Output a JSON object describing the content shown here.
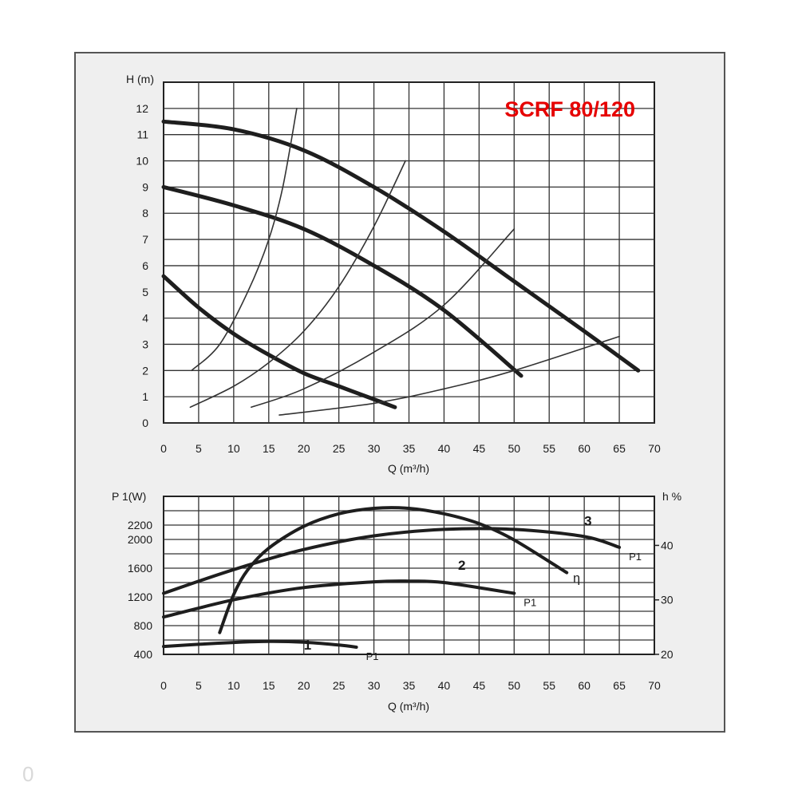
{
  "page": {
    "corner_mark": "0"
  },
  "chart_data": [
    {
      "id": "head",
      "type": "line",
      "title": "SCRF 80/120",
      "title_color": "#e60000",
      "xlabel": "Q (m³/h)",
      "ylabel": "H (m)",
      "xlim": [
        0,
        70
      ],
      "ylim": [
        0,
        13
      ],
      "xticks": [
        0,
        5,
        10,
        15,
        20,
        25,
        30,
        35,
        40,
        45,
        50,
        55,
        60,
        65,
        70
      ],
      "yticks": [
        0,
        1,
        2,
        3,
        4,
        5,
        6,
        7,
        8,
        9,
        10,
        11,
        12
      ],
      "grid": true,
      "series": [
        {
          "role": "speed-curve",
          "weight": "heavy",
          "points": [
            [
              0,
              11.5
            ],
            [
              10,
              11.2
            ],
            [
              20,
              10.4
            ],
            [
              30,
              9.0
            ],
            [
              40,
              7.3
            ],
            [
              50,
              5.4
            ],
            [
              60,
              3.5
            ],
            [
              67.7,
              2.0
            ]
          ]
        },
        {
          "role": "speed-curve",
          "weight": "heavy",
          "points": [
            [
              0,
              9.0
            ],
            [
              10,
              8.3
            ],
            [
              20,
              7.4
            ],
            [
              30,
              6.0
            ],
            [
              40,
              4.3
            ],
            [
              51,
              1.8
            ]
          ]
        },
        {
          "role": "speed-curve",
          "weight": "heavy",
          "points": [
            [
              0,
              5.6
            ],
            [
              5,
              4.4
            ],
            [
              10,
              3.4
            ],
            [
              15,
              2.6
            ],
            [
              20,
              1.9
            ],
            [
              25,
              1.4
            ],
            [
              30,
              0.9
            ],
            [
              33,
              0.6
            ]
          ]
        },
        {
          "role": "system-curve",
          "weight": "thin",
          "points": [
            [
              4,
              2.0
            ],
            [
              8,
              3.0
            ],
            [
              12,
              5.0
            ],
            [
              15,
              7.0
            ],
            [
              17,
              9.0
            ],
            [
              19,
              12.0
            ]
          ]
        },
        {
          "role": "system-curve",
          "weight": "thin",
          "points": [
            [
              3.8,
              0.6
            ],
            [
              10,
              1.4
            ],
            [
              15,
              2.3
            ],
            [
              20,
              3.5
            ],
            [
              25,
              5.2
            ],
            [
              30,
              7.5
            ],
            [
              34.5,
              10.0
            ]
          ]
        },
        {
          "role": "system-curve",
          "weight": "thin",
          "points": [
            [
              12.5,
              0.6
            ],
            [
              20,
              1.3
            ],
            [
              30,
              2.7
            ],
            [
              40,
              4.5
            ],
            [
              50,
              7.4
            ]
          ]
        },
        {
          "role": "system-curve",
          "weight": "thin",
          "points": [
            [
              16.5,
              0.3
            ],
            [
              30,
              0.75
            ],
            [
              40,
              1.3
            ],
            [
              50,
              2.0
            ],
            [
              65,
              3.3
            ]
          ]
        }
      ]
    },
    {
      "id": "power",
      "type": "line",
      "xlabel": "Q (m³/h)",
      "ylabel": "P 1(W)",
      "y2label": "h %",
      "xlim": [
        0,
        70
      ],
      "ylim": [
        400,
        2600
      ],
      "y2lim": [
        20,
        49
      ],
      "xticks": [
        0,
        5,
        10,
        15,
        20,
        25,
        30,
        35,
        40,
        45,
        50,
        55,
        60,
        65,
        70
      ],
      "yticks": [
        400,
        800,
        1200,
        1600,
        2000,
        2200
      ],
      "y2ticks": [
        20,
        30,
        40
      ],
      "grid": true,
      "series": [
        {
          "name": "1",
          "label": "P1",
          "axis": "left",
          "points": [
            [
              0,
              510
            ],
            [
              5,
              540
            ],
            [
              10,
              565
            ],
            [
              15,
              580
            ],
            [
              20,
              570
            ],
            [
              25,
              530
            ],
            [
              27.5,
              500
            ]
          ]
        },
        {
          "name": "2",
          "label": "P1",
          "axis": "left",
          "points": [
            [
              0,
              920
            ],
            [
              10,
              1160
            ],
            [
              20,
              1330
            ],
            [
              30,
              1410
            ],
            [
              35,
              1420
            ],
            [
              40,
              1400
            ],
            [
              50,
              1250
            ]
          ]
        },
        {
          "name": "3",
          "label": "P1",
          "axis": "left",
          "points": [
            [
              0,
              1250
            ],
            [
              10,
              1580
            ],
            [
              20,
              1860
            ],
            [
              30,
              2050
            ],
            [
              40,
              2140
            ],
            [
              50,
              2140
            ],
            [
              60,
              2040
            ],
            [
              65,
              1890
            ]
          ]
        },
        {
          "name": "η",
          "label": "η",
          "axis": "right",
          "points": [
            [
              8,
              24.0
            ],
            [
              10,
              31.0
            ],
            [
              12,
              35.5
            ],
            [
              15,
              39.5
            ],
            [
              20,
              43.5
            ],
            [
              25,
              45.8
            ],
            [
              30,
              46.8
            ],
            [
              35,
              46.8
            ],
            [
              40,
              45.8
            ],
            [
              45,
              44.0
            ],
            [
              50,
              41.0
            ],
            [
              57.5,
              35.0
            ]
          ]
        }
      ]
    }
  ]
}
